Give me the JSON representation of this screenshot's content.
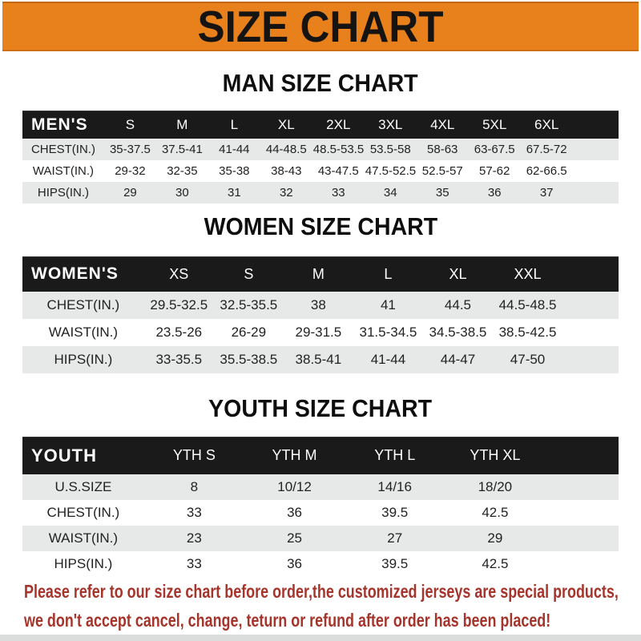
{
  "banner": {
    "title": "SIZE CHART",
    "bg": "#E8811C"
  },
  "sections": [
    {
      "heading": "MAN SIZE CHART",
      "corner_label": "MEN'S",
      "columns": [
        "S",
        "M",
        "L",
        "XL",
        "2XL",
        "3XL",
        "4XL",
        "5XL",
        "6XL"
      ],
      "rows": [
        {
          "label": "CHEST(IN.)",
          "values": [
            "35-37.5",
            "37.5-41",
            "41-44",
            "44-48.5",
            "48.5-53.5",
            "53.5-58",
            "58-63",
            "63-67.5",
            "67.5-72"
          ]
        },
        {
          "label": "WAIST(IN.)",
          "values": [
            "29-32",
            "32-35",
            "35-38",
            "38-43",
            "43-47.5",
            "47.5-52.5",
            "52.5-57",
            "57-62",
            "62-66.5"
          ]
        },
        {
          "label": "HIPS(IN.)",
          "values": [
            "29",
            "30",
            "31",
            "32",
            "33",
            "34",
            "35",
            "36",
            "37"
          ]
        }
      ]
    },
    {
      "heading": "WOMEN SIZE CHART",
      "corner_label": "WOMEN'S",
      "columns": [
        "XS",
        "S",
        "M",
        "L",
        "XL",
        "XXL"
      ],
      "rows": [
        {
          "label": "CHEST(IN.)",
          "values": [
            "29.5-32.5",
            "32.5-35.5",
            "38",
            "41",
            "44.5",
            "44.5-48.5"
          ]
        },
        {
          "label": "WAIST(IN.)",
          "values": [
            "23.5-26",
            "26-29",
            "29-31.5",
            "31.5-34.5",
            "34.5-38.5",
            "38.5-42.5"
          ]
        },
        {
          "label": "HIPS(IN.)",
          "values": [
            "33-35.5",
            "35.5-38.5",
            "38.5-41",
            "41-44",
            "44-47",
            "47-50"
          ]
        }
      ]
    },
    {
      "heading": "YOUTH SIZE CHART",
      "corner_label": "YOUTH",
      "columns": [
        "YTH S",
        "YTH M",
        "YTH L",
        "YTH XL"
      ],
      "rows": [
        {
          "label": "U.S.SIZE",
          "values": [
            "8",
            "10/12",
            "14/16",
            "18/20"
          ]
        },
        {
          "label": "CHEST(IN.)",
          "values": [
            "33",
            "36",
            "39.5",
            "42.5"
          ]
        },
        {
          "label": "WAIST(IN.)",
          "values": [
            "23",
            "25",
            "27",
            "29"
          ]
        },
        {
          "label": "HIPS(IN.)",
          "values": [
            "33",
            "36",
            "39.5",
            "42.5"
          ]
        }
      ]
    }
  ],
  "footer": {
    "line1": "Please refer to our size chart before order,the customized jerseys are special products,",
    "line2": "we don't accept cancel, change, teturn or refund after order has been placed!",
    "color": "#A5342B"
  }
}
